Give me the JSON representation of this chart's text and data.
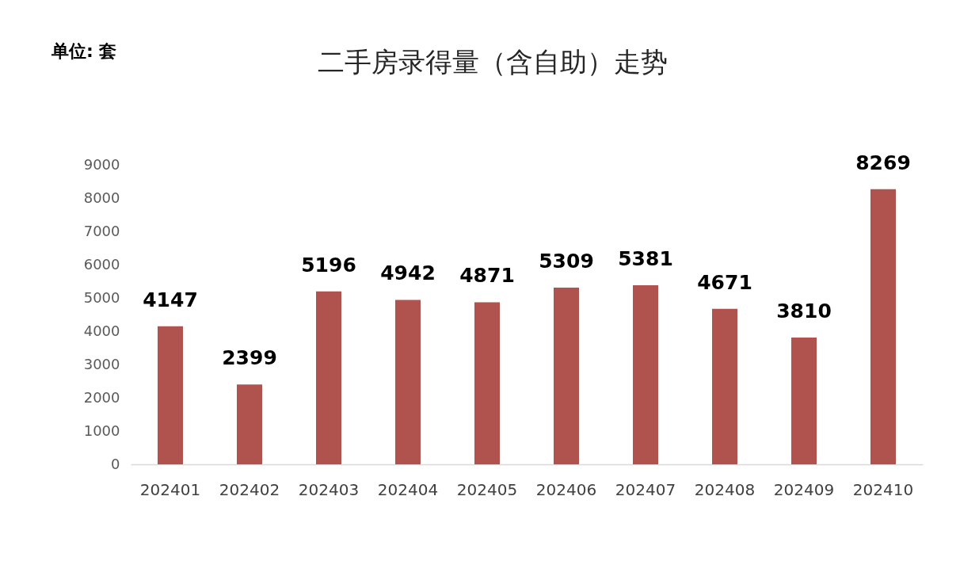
{
  "chart_data": {
    "type": "bar",
    "title": "二手房录得量（含自助）走势",
    "annotations": [
      "单位: 套"
    ],
    "categories": [
      "202401",
      "202402",
      "202403",
      "202404",
      "202405",
      "202406",
      "202407",
      "202408",
      "202409",
      "202410"
    ],
    "values": [
      4147,
      2399,
      5196,
      4942,
      4871,
      5309,
      5381,
      4671,
      3810,
      8269
    ],
    "color": "#b0524e",
    "ylim": [
      0,
      9000
    ],
    "yticks": [
      0,
      1000,
      2000,
      3000,
      4000,
      5000,
      6000,
      7000,
      8000,
      9000
    ],
    "data_labels": true
  }
}
